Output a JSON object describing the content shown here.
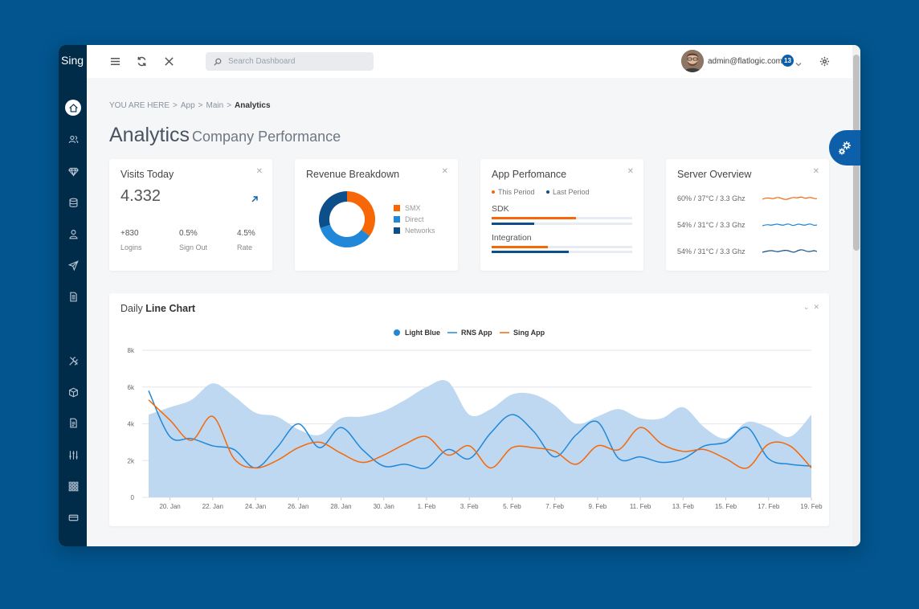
{
  "app": {
    "brand": "Sing"
  },
  "header": {
    "search_placeholder": "Search Dashboard",
    "user_email": "admin@flatlogic.com",
    "notifications": "13"
  },
  "sidebar": {
    "icons": [
      "home-icon",
      "users-icon",
      "diamond-icon",
      "database-icon",
      "user-icon",
      "send-icon",
      "document-icon",
      "tools-icon",
      "box-icon",
      "file-icon",
      "sliders-icon",
      "grid-icon",
      "card-icon"
    ]
  },
  "breadcrumb": {
    "prefix": "YOU ARE HERE",
    "items": [
      "App",
      "Main"
    ],
    "current": "Analytics"
  },
  "page": {
    "title": "Analytics",
    "subtitle": "Company Performance"
  },
  "visits": {
    "title": "Visits Today",
    "value": "4.332",
    "stats": [
      {
        "value": "+830",
        "label": "Logins"
      },
      {
        "value": "0.5%",
        "label": "Sign Out"
      },
      {
        "value": "4.5%",
        "label": "Rate"
      }
    ]
  },
  "revenue": {
    "title": "Revenue Breakdown",
    "slices": [
      {
        "label": "SMX",
        "value": 35,
        "color": "#f76707"
      },
      {
        "label": "Direct",
        "value": 35,
        "color": "#2188d9"
      },
      {
        "label": "Networks",
        "value": 30,
        "color": "#0d4f8b"
      }
    ]
  },
  "appperf": {
    "title": "App Perfomance",
    "legend": [
      {
        "label": "This Period",
        "color": "#f76707"
      },
      {
        "label": "Last Period",
        "color": "#0d4f8b"
      }
    ],
    "rows": [
      {
        "label": "SDK",
        "this": 0.6,
        "last": 0.3
      },
      {
        "label": "Integration",
        "this": 0.4,
        "last": 0.55
      }
    ]
  },
  "server": {
    "title": "Server Overview",
    "rows": [
      {
        "label": "60% / 37°C / 3.3 Ghz",
        "color": "#f76707"
      },
      {
        "label": "54% / 31°C / 3.3 Ghz",
        "color": "#2188d9"
      },
      {
        "label": "54% / 31°C / 3.3 Ghz",
        "color": "#0d4f8b"
      }
    ]
  },
  "daily": {
    "title_light": "Daily",
    "title_bold": "Line Chart"
  },
  "chart_data": {
    "type": "line",
    "title": "Daily Line Chart",
    "x": [
      "19. Jan",
      "20. Jan",
      "21. Jan",
      "22. Jan",
      "23. Jan",
      "24. Jan",
      "25. Jan",
      "26. Jan",
      "27. Jan",
      "28. Jan",
      "29. Jan",
      "30. Jan",
      "31. Jan",
      "1. Feb",
      "2. Feb",
      "3. Feb",
      "4. Feb",
      "5. Feb",
      "6. Feb",
      "7. Feb",
      "8. Feb",
      "9. Feb",
      "10. Feb",
      "11. Feb",
      "12. Feb",
      "13. Feb",
      "14. Feb",
      "15. Feb",
      "16. Feb",
      "17. Feb",
      "18. Feb",
      "19. Feb"
    ],
    "xticks": [
      "20. Jan",
      "22. Jan",
      "24. Jan",
      "26. Jan",
      "28. Jan",
      "30. Jan",
      "1. Feb",
      "3. Feb",
      "5. Feb",
      "7. Feb",
      "9. Feb",
      "11. Feb",
      "13. Feb",
      "15. Feb",
      "17. Feb",
      "19. Feb"
    ],
    "yticks": [
      0,
      2000,
      4000,
      6000,
      8000
    ],
    "ytick_labels": [
      "0",
      "2k",
      "4k",
      "6k",
      "8k"
    ],
    "ylim": [
      0,
      8000
    ],
    "series": [
      {
        "name": "Light Blue",
        "kind": "area",
        "color": "#bdd8f0",
        "values": [
          4500,
          4900,
          5300,
          6200,
          5500,
          4600,
          4400,
          3700,
          3400,
          4300,
          4400,
          4700,
          5300,
          6000,
          6300,
          4500,
          4800,
          5600,
          5600,
          5000,
          4000,
          4400,
          4800,
          4300,
          4300,
          4900,
          3800,
          3200,
          4100,
          3800,
          3300,
          4500
        ]
      },
      {
        "name": "RNS App",
        "kind": "line",
        "color": "#2188d9",
        "values": [
          5800,
          3300,
          3200,
          2800,
          2600,
          1600,
          2700,
          4000,
          2700,
          3800,
          2600,
          1700,
          1800,
          1600,
          2600,
          2100,
          3500,
          4500,
          3600,
          2200,
          3400,
          4100,
          2100,
          2200,
          1900,
          2100,
          2800,
          3000,
          3800,
          2100,
          1800,
          1700
        ]
      },
      {
        "name": "Sing App",
        "kind": "line",
        "color": "#f76707",
        "values": [
          5300,
          4200,
          3100,
          4400,
          2100,
          1600,
          2000,
          2700,
          3000,
          2400,
          1900,
          2300,
          2900,
          3300,
          2300,
          2800,
          1600,
          2700,
          2700,
          2500,
          1800,
          2800,
          2600,
          3800,
          2900,
          2500,
          2600,
          2100,
          1600,
          2900,
          2800,
          1600
        ]
      }
    ]
  }
}
